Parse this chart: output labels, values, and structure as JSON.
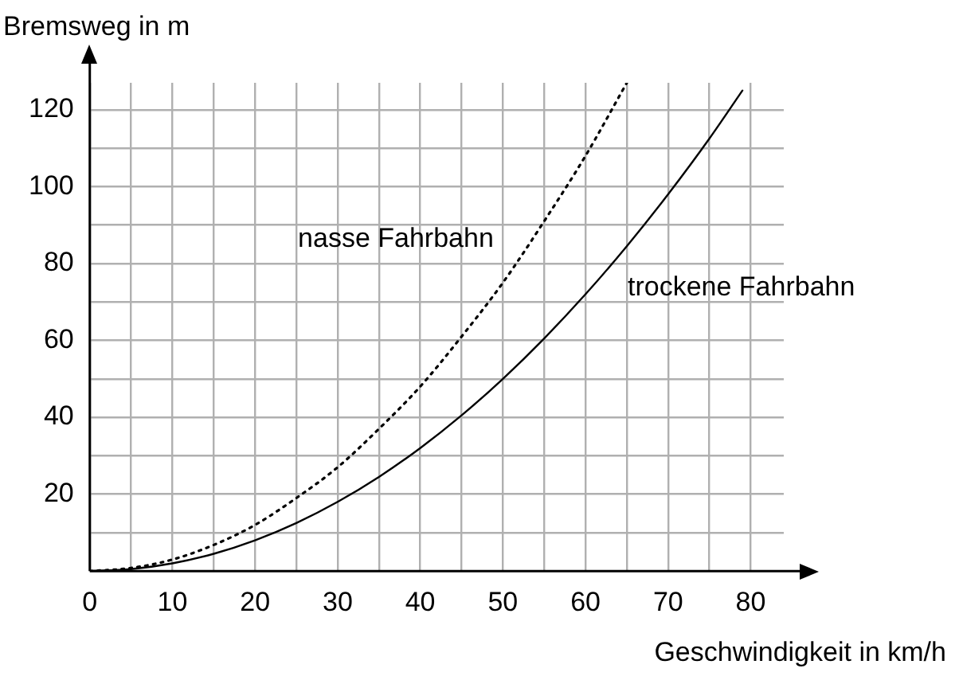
{
  "chart_data": {
    "type": "line",
    "ylabel": "Bremsweg in m",
    "xlabel": "Geschwindigkeit in km/h",
    "xlim": [
      0,
      84
    ],
    "ylim": [
      0,
      127
    ],
    "xticks": [
      {
        "value": 0,
        "label": "0"
      },
      {
        "value": 5,
        "label": null
      },
      10,
      {
        "value": 15,
        "label": null
      },
      20,
      {
        "value": 25,
        "label": null
      },
      30,
      {
        "value": 35,
        "label": null
      },
      40,
      {
        "value": 45,
        "label": null
      },
      50,
      {
        "value": 55,
        "label": null
      },
      60,
      {
        "value": 65,
        "label": null
      },
      70,
      {
        "value": 75,
        "label": null
      },
      80
    ],
    "yticks": [
      {
        "value": 10,
        "label": null
      },
      20,
      {
        "value": 30,
        "label": null
      },
      40,
      {
        "value": 50,
        "label": null
      },
      60,
      {
        "value": 70,
        "label": null
      },
      80,
      {
        "value": 90,
        "label": null
      },
      100,
      {
        "value": 110,
        "label": null
      },
      120
    ],
    "grid": true,
    "marker": "none",
    "legend": false,
    "series": [
      {
        "name": "nasse Fahrbahn",
        "color": "#000000",
        "line_style": "dotted",
        "x": [
          0,
          5,
          10,
          15,
          20,
          25,
          30,
          35,
          40,
          45,
          50,
          55,
          60,
          65
        ],
        "values": [
          0,
          0.8,
          3,
          6.8,
          12,
          19,
          27,
          37,
          48,
          61,
          75,
          91,
          108,
          127
        ]
      },
      {
        "name": "trockene Fahrbahn",
        "color": "#000000",
        "line_style": "solid",
        "x": [
          0,
          5,
          10,
          15,
          20,
          25,
          30,
          35,
          40,
          45,
          50,
          55,
          60,
          65,
          70,
          75,
          79
        ],
        "values": [
          0,
          0.5,
          2,
          4.5,
          8,
          12.5,
          18,
          24.5,
          32,
          40.5,
          50,
          60.5,
          72,
          84.5,
          98,
          112.5,
          125
        ]
      }
    ]
  }
}
